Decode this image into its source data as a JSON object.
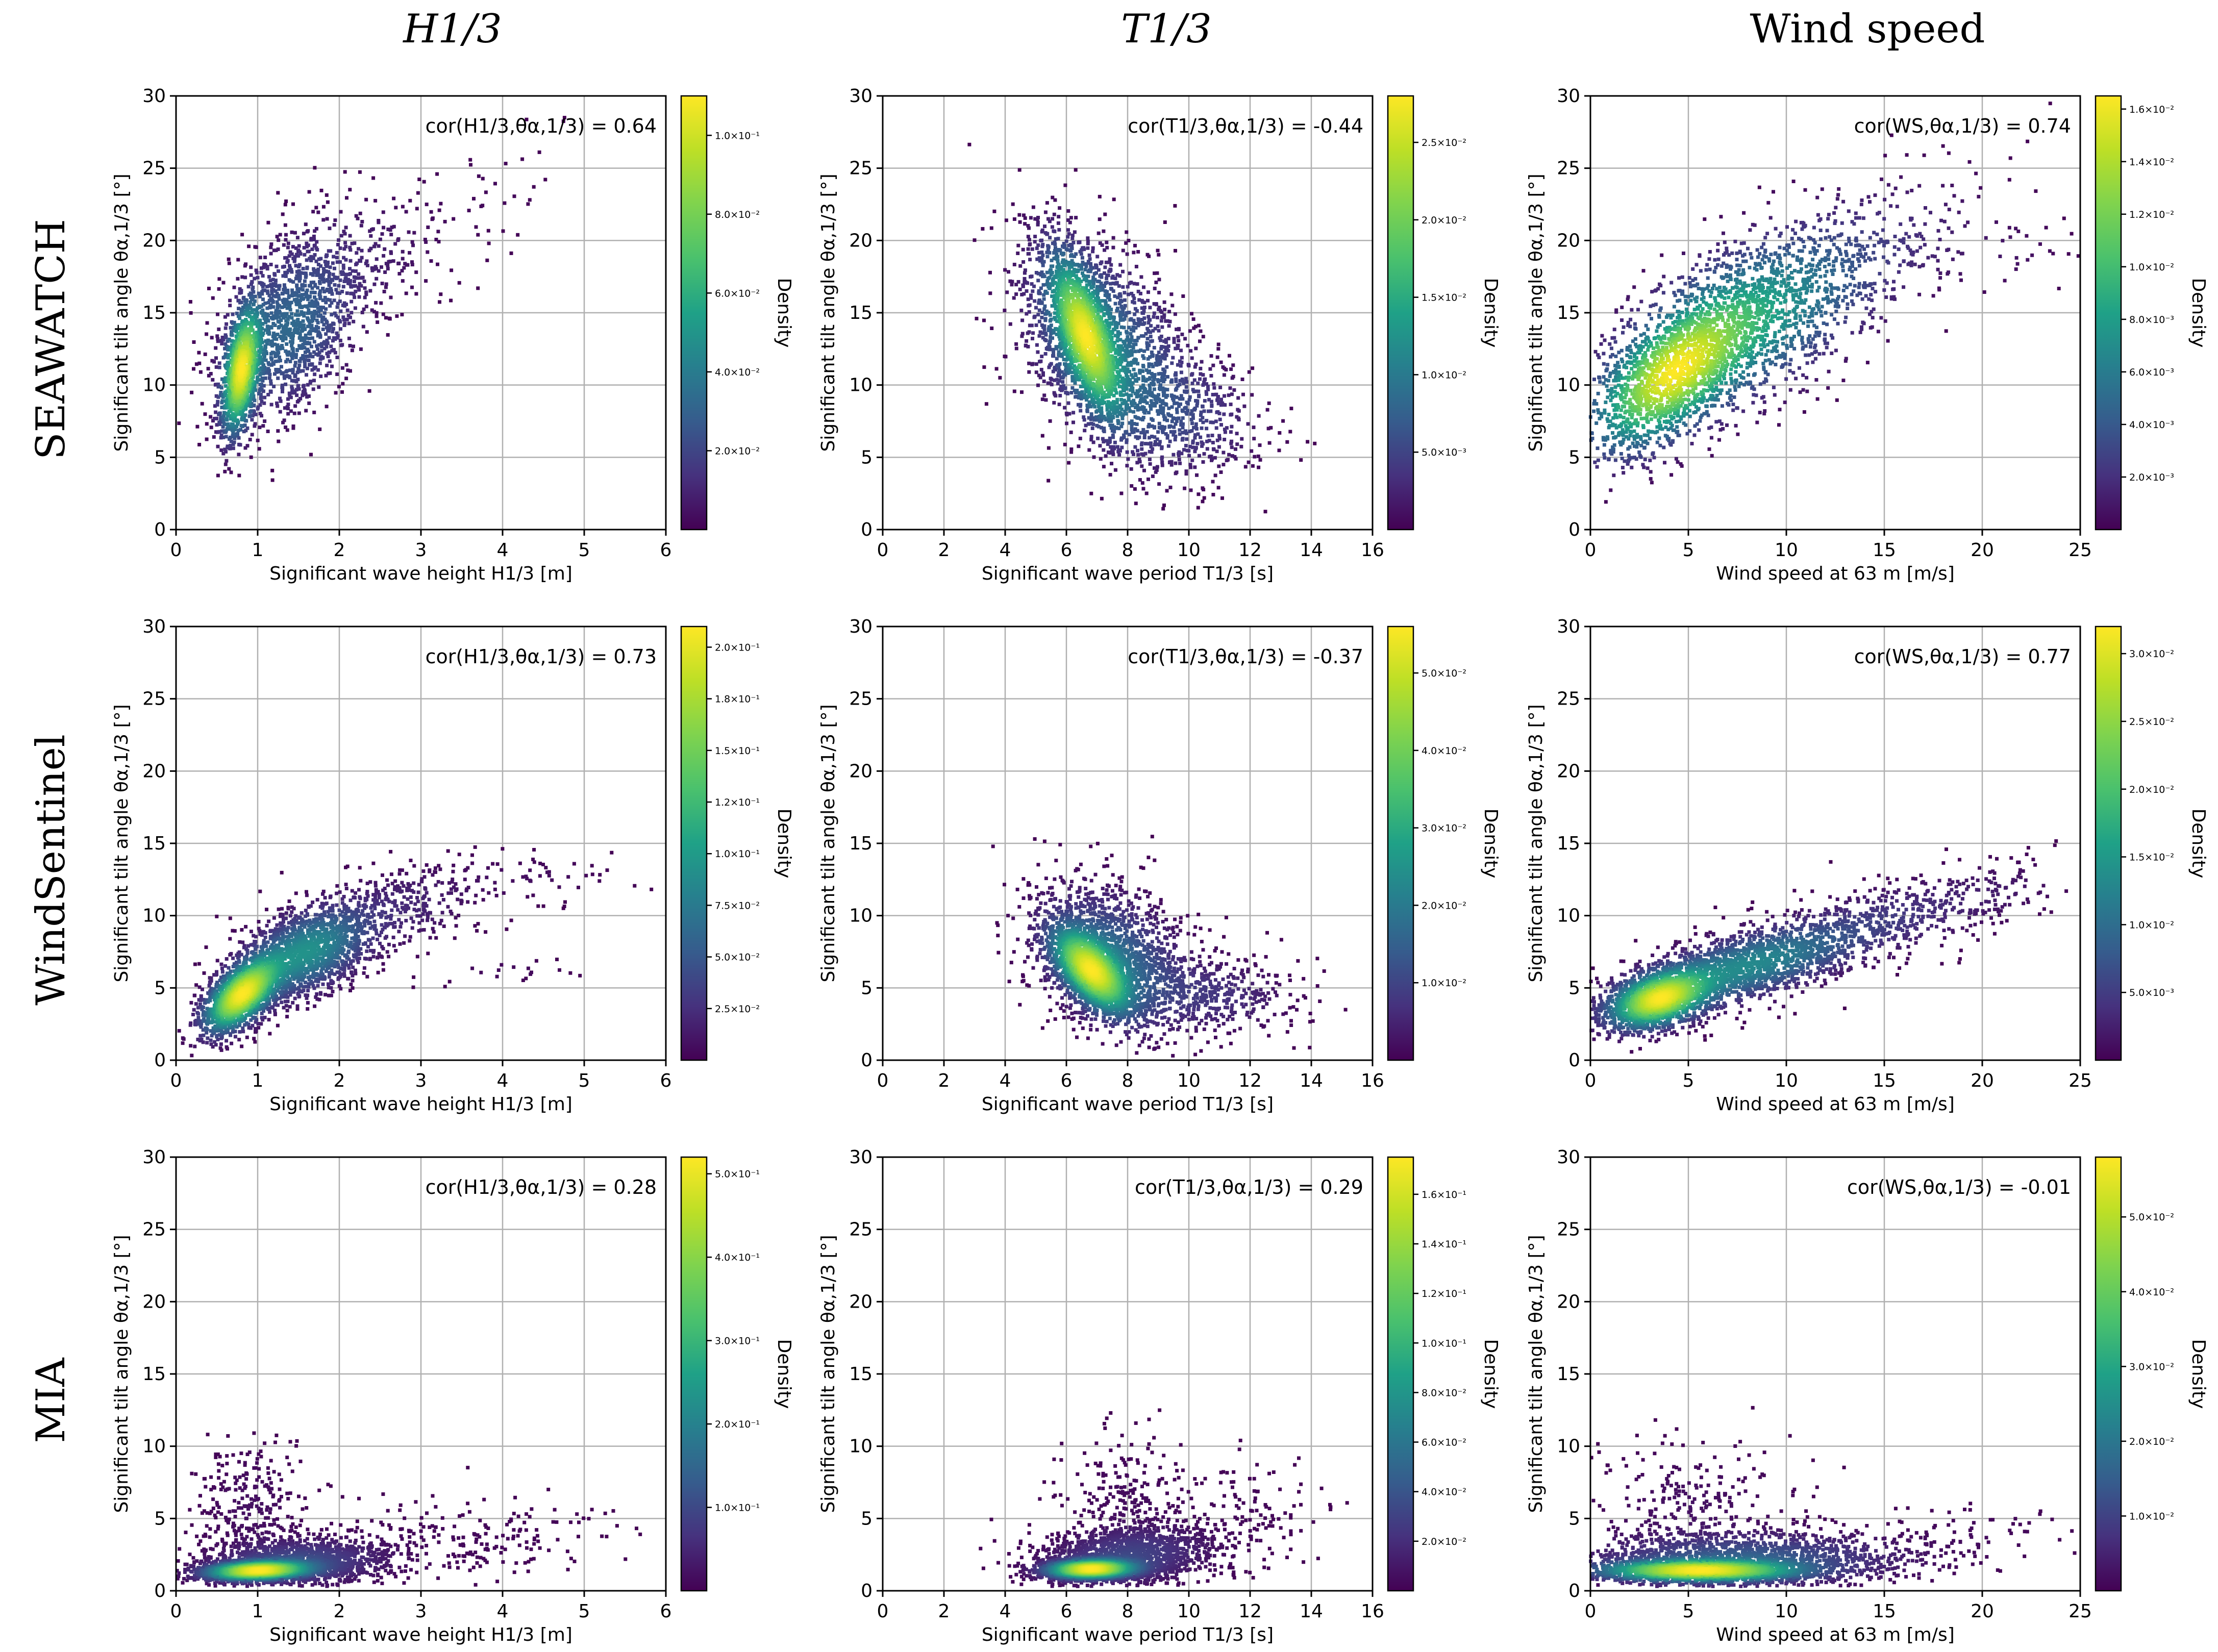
{
  "column_titles": [
    "H1/3",
    "T1/3",
    "Wind speed"
  ],
  "row_titles": [
    "SEAWATCH",
    "WindSentinel",
    "MIA"
  ],
  "colors": {
    "viridis_low": "#440154",
    "viridis_mid": "#21918c",
    "viridis_high": "#fde725",
    "grid": "#b0b0b0"
  },
  "chart_data": [
    {
      "type": "scatter",
      "row": "SEAWATCH",
      "column": "H1/3",
      "xlabel": "Significant wave height H1/3 [m]",
      "ylabel": "Significant tilt angle θα,1/3 [°]",
      "xlim": [
        0,
        6
      ],
      "ylim": [
        0,
        30
      ],
      "xticks": [
        0,
        1,
        2,
        3,
        4,
        5,
        6
      ],
      "yticks": [
        0,
        5,
        10,
        15,
        20,
        25,
        30
      ],
      "annotation": "cor(H1/3,θα,1/3) = 0.64",
      "correlation": 0.64,
      "colorbar_label": "Density",
      "colorbar_ticks": [
        "1.0×10⁻¹",
        "8.0×10⁻²",
        "6.0×10⁻²",
        "4.0×10⁻²",
        "2.0×10⁻²"
      ],
      "colorbar_range": [
        0.0,
        0.11
      ],
      "colorbar_tick_values": [
        0.1,
        0.08,
        0.06,
        0.04,
        0.02
      ],
      "clusters": [
        {
          "x": 0.8,
          "y": 11.0,
          "sx": 0.13,
          "sy": 2.4,
          "rho": 0.45,
          "n": 1100
        },
        {
          "x": 1.4,
          "y": 14.0,
          "sx": 0.45,
          "sy": 3.3,
          "rho": 0.35,
          "n": 1300
        },
        {
          "x": 2.4,
          "y": 19.0,
          "sx": 0.55,
          "sy": 2.6,
          "rho": 0.25,
          "n": 200
        },
        {
          "x": 3.9,
          "y": 23.5,
          "sx": 0.45,
          "sy": 2.2,
          "rho": 0.3,
          "n": 30
        }
      ]
    },
    {
      "type": "scatter",
      "row": "SEAWATCH",
      "column": "T1/3",
      "xlabel": "Significant wave period T1/3 [s]",
      "ylabel": "Significant tilt angle θα,1/3 [°]",
      "xlim": [
        0,
        16
      ],
      "ylim": [
        0,
        30
      ],
      "xticks": [
        0,
        2,
        4,
        6,
        8,
        10,
        12,
        14,
        16
      ],
      "yticks": [
        0,
        5,
        10,
        15,
        20,
        25,
        30
      ],
      "annotation": "cor(T1/3,θα,1/3) = -0.44",
      "correlation": -0.44,
      "colorbar_label": "Density",
      "colorbar_ticks": [
        "2.5×10⁻²",
        "2.0×10⁻²",
        "1.5×10⁻²",
        "1.0×10⁻²",
        "5.0×10⁻³"
      ],
      "colorbar_range": [
        0.0,
        0.028
      ],
      "colorbar_tick_values": [
        0.025,
        0.02,
        0.015,
        0.01,
        0.005
      ],
      "clusters": [
        {
          "x": 6.6,
          "y": 13.5,
          "sx": 0.65,
          "sy": 3.0,
          "rho": -0.65,
          "n": 1500
        },
        {
          "x": 7.3,
          "y": 12.5,
          "sx": 1.5,
          "sy": 4.0,
          "rho": -0.45,
          "n": 1700
        },
        {
          "x": 10.0,
          "y": 8.0,
          "sx": 1.4,
          "sy": 2.2,
          "rho": -0.2,
          "n": 350
        }
      ]
    },
    {
      "type": "scatter",
      "row": "SEAWATCH",
      "column": "Wind speed",
      "xlabel": "Wind speed at 63 m [m/s]",
      "ylabel": "Significant tilt angle θα,1/3 [°]",
      "xlim": [
        0,
        25
      ],
      "ylim": [
        0,
        30
      ],
      "xticks": [
        0,
        5,
        10,
        15,
        20,
        25
      ],
      "yticks": [
        0,
        5,
        10,
        15,
        20,
        25,
        30
      ],
      "annotation": "cor(WS,θα,1/3) = 0.74",
      "correlation": 0.74,
      "colorbar_label": "Density",
      "colorbar_ticks": [
        "1.6×10⁻²",
        "1.4×10⁻²",
        "1.2×10⁻²",
        "1.0×10⁻²",
        "8.0×10⁻³",
        "6.0×10⁻³",
        "4.0×10⁻³",
        "2.0×10⁻³"
      ],
      "colorbar_range": [
        0.0,
        0.0165
      ],
      "colorbar_tick_values": [
        0.016,
        0.014,
        0.012,
        0.01,
        0.008,
        0.006,
        0.004,
        0.002
      ],
      "clusters": [
        {
          "x": 4.0,
          "y": 10.5,
          "sx": 2.2,
          "sy": 2.8,
          "rho": 0.6,
          "n": 1400
        },
        {
          "x": 8.0,
          "y": 14.5,
          "sx": 3.5,
          "sy": 3.5,
          "rho": 0.55,
          "n": 1500
        },
        {
          "x": 15.5,
          "y": 20.0,
          "sx": 3.0,
          "sy": 3.0,
          "rho": 0.4,
          "n": 150
        },
        {
          "x": 21.0,
          "y": 19.0,
          "sx": 2.0,
          "sy": 1.5,
          "rho": 0.0,
          "n": 25
        }
      ]
    },
    {
      "type": "scatter",
      "row": "WindSentinel",
      "column": "H1/3",
      "xlabel": "Significant wave height H1/3 [m]",
      "ylabel": "Significant tilt angle θα,1/3 [°]",
      "xlim": [
        0,
        6
      ],
      "ylim": [
        0,
        30
      ],
      "xticks": [
        0,
        1,
        2,
        3,
        4,
        5,
        6
      ],
      "yticks": [
        0,
        5,
        10,
        15,
        20,
        25,
        30
      ],
      "annotation": "cor(H1/3,θα,1/3) = 0.73",
      "correlation": 0.73,
      "colorbar_label": "Density",
      "colorbar_ticks": [
        "2.0×10⁻¹",
        "1.8×10⁻¹",
        "1.5×10⁻¹",
        "1.2×10⁻¹",
        "1.0×10⁻¹",
        "7.5×10⁻²",
        "5.0×10⁻²",
        "2.5×10⁻²"
      ],
      "colorbar_range": [
        0.0,
        0.21
      ],
      "colorbar_tick_values": [
        0.2,
        0.175,
        0.15,
        0.125,
        0.1,
        0.075,
        0.05,
        0.025
      ],
      "clusters": [
        {
          "x": 0.8,
          "y": 4.5,
          "sx": 0.25,
          "sy": 1.4,
          "rho": 0.6,
          "n": 1700
        },
        {
          "x": 1.6,
          "y": 7.5,
          "sx": 0.45,
          "sy": 1.8,
          "rho": 0.5,
          "n": 1600
        },
        {
          "x": 2.8,
          "y": 10.5,
          "sx": 0.5,
          "sy": 1.6,
          "rho": 0.3,
          "n": 250
        },
        {
          "x": 4.3,
          "y": 12.5,
          "sx": 0.7,
          "sy": 0.9,
          "rho": 0.1,
          "n": 60
        },
        {
          "x": 4.0,
          "y": 6.2,
          "sx": 0.5,
          "sy": 0.5,
          "rho": 0.0,
          "n": 20
        }
      ]
    },
    {
      "type": "scatter",
      "row": "WindSentinel",
      "column": "T1/3",
      "xlabel": "Significant wave period T1/3 [s]",
      "ylabel": "Significant tilt angle θα,1/3 [°]",
      "xlim": [
        0,
        16
      ],
      "ylim": [
        0,
        30
      ],
      "xticks": [
        0,
        2,
        4,
        6,
        8,
        10,
        12,
        14,
        16
      ],
      "yticks": [
        0,
        5,
        10,
        15,
        20,
        25,
        30
      ],
      "annotation": "cor(T1/3,θα,1/3) = -0.37",
      "correlation": -0.37,
      "colorbar_label": "Density",
      "colorbar_ticks": [
        "5.0×10⁻²",
        "4.0×10⁻²",
        "3.0×10⁻²",
        "2.0×10⁻²",
        "1.0×10⁻²"
      ],
      "colorbar_range": [
        0.0,
        0.056
      ],
      "colorbar_tick_values": [
        0.05,
        0.04,
        0.03,
        0.02,
        0.01
      ],
      "clusters": [
        {
          "x": 6.8,
          "y": 6.2,
          "sx": 0.7,
          "sy": 1.6,
          "rho": -0.6,
          "n": 1700
        },
        {
          "x": 7.5,
          "y": 7.0,
          "sx": 1.3,
          "sy": 2.6,
          "rho": -0.35,
          "n": 1700
        },
        {
          "x": 10.8,
          "y": 4.5,
          "sx": 1.4,
          "sy": 1.4,
          "rho": -0.1,
          "n": 350
        }
      ]
    },
    {
      "type": "scatter",
      "row": "WindSentinel",
      "column": "Wind speed",
      "xlabel": "Wind speed at 63 m [m/s]",
      "ylabel": "Significant tilt angle θα,1/3 [°]",
      "xlim": [
        0,
        25
      ],
      "ylim": [
        0,
        30
      ],
      "xticks": [
        0,
        5,
        10,
        15,
        20,
        25
      ],
      "yticks": [
        0,
        5,
        10,
        15,
        20,
        25,
        30
      ],
      "annotation": "cor(WS,θα,1/3) = 0.77",
      "correlation": 0.77,
      "colorbar_label": "Density",
      "colorbar_ticks": [
        "3.0×10⁻²",
        "2.5×10⁻²",
        "2.0×10⁻²",
        "1.5×10⁻²",
        "1.0×10⁻²",
        "5.0×10⁻³"
      ],
      "colorbar_range": [
        0.0,
        0.032
      ],
      "colorbar_tick_values": [
        0.03,
        0.025,
        0.02,
        0.015,
        0.01,
        0.005
      ],
      "clusters": [
        {
          "x": 3.5,
          "y": 4.2,
          "sx": 1.4,
          "sy": 1.1,
          "rho": 0.4,
          "n": 1500
        },
        {
          "x": 8.0,
          "y": 6.5,
          "sx": 3.5,
          "sy": 1.8,
          "rho": 0.7,
          "n": 1800
        },
        {
          "x": 16.0,
          "y": 10.0,
          "sx": 3.0,
          "sy": 1.6,
          "rho": 0.5,
          "n": 350
        },
        {
          "x": 21.5,
          "y": 12.0,
          "sx": 1.8,
          "sy": 1.2,
          "rho": 0.2,
          "n": 50
        }
      ]
    },
    {
      "type": "scatter",
      "row": "MIA",
      "column": "H1/3",
      "xlabel": "Significant wave height H1/3 [m]",
      "ylabel": "Significant tilt angle θα,1/3 [°]",
      "xlim": [
        0,
        6
      ],
      "ylim": [
        0,
        30
      ],
      "xticks": [
        0,
        1,
        2,
        3,
        4,
        5,
        6
      ],
      "yticks": [
        0,
        5,
        10,
        15,
        20,
        25,
        30
      ],
      "annotation": "cor(H1/3,θα,1/3) = 0.28",
      "correlation": 0.28,
      "colorbar_label": "Density",
      "colorbar_ticks": [
        "5.0×10⁻¹",
        "4.0×10⁻¹",
        "3.0×10⁻¹",
        "2.0×10⁻¹",
        "1.0×10⁻¹"
      ],
      "colorbar_range": [
        0.0,
        0.52
      ],
      "colorbar_tick_values": [
        0.5,
        0.4,
        0.3,
        0.2,
        0.1
      ],
      "clusters": [
        {
          "x": 1.0,
          "y": 1.4,
          "sx": 0.35,
          "sy": 0.35,
          "rho": 0.2,
          "n": 2000
        },
        {
          "x": 1.5,
          "y": 2.0,
          "sx": 0.6,
          "sy": 0.9,
          "rho": 0.1,
          "n": 1300
        },
        {
          "x": 0.9,
          "y": 6.0,
          "sx": 0.35,
          "sy": 2.2,
          "rho": 0.0,
          "n": 250
        },
        {
          "x": 3.5,
          "y": 3.5,
          "sx": 0.9,
          "sy": 1.6,
          "rho": 0.1,
          "n": 200
        }
      ]
    },
    {
      "type": "scatter",
      "row": "MIA",
      "column": "T1/3",
      "xlabel": "Significant wave period T1/3 [s]",
      "ylabel": "Significant tilt angle θα,1/3 [°]",
      "xlim": [
        0,
        16
      ],
      "ylim": [
        0,
        30
      ],
      "xticks": [
        0,
        2,
        4,
        6,
        8,
        10,
        12,
        14,
        16
      ],
      "yticks": [
        0,
        5,
        10,
        15,
        20,
        25,
        30
      ],
      "annotation": "cor(T1/3,θα,1/3) = 0.29",
      "correlation": 0.29,
      "colorbar_label": "Density",
      "colorbar_ticks": [
        "1.6×10⁻¹",
        "1.4×10⁻¹",
        "1.2×10⁻¹",
        "1.0×10⁻¹",
        "8.0×10⁻²",
        "6.0×10⁻²",
        "4.0×10⁻²",
        "2.0×10⁻²"
      ],
      "colorbar_range": [
        0.0,
        0.175
      ],
      "colorbar_tick_values": [
        0.16,
        0.14,
        0.12,
        0.1,
        0.08,
        0.06,
        0.04,
        0.02
      ],
      "clusters": [
        {
          "x": 6.8,
          "y": 1.5,
          "sx": 0.8,
          "sy": 0.35,
          "rho": 0.1,
          "n": 2000
        },
        {
          "x": 8.0,
          "y": 2.4,
          "sx": 1.5,
          "sy": 1.1,
          "rho": 0.2,
          "n": 1400
        },
        {
          "x": 8.0,
          "y": 6.0,
          "sx": 1.2,
          "sy": 2.2,
          "rho": 0.0,
          "n": 250
        },
        {
          "x": 12.0,
          "y": 5.0,
          "sx": 1.3,
          "sy": 2.0,
          "rho": 0.0,
          "n": 120
        }
      ]
    },
    {
      "type": "scatter",
      "row": "MIA",
      "column": "Wind speed",
      "xlabel": "Wind speed at 63 m [m/s]",
      "ylabel": "Significant tilt angle θα,1/3 [°]",
      "xlim": [
        0,
        25
      ],
      "ylim": [
        0,
        30
      ],
      "xticks": [
        0,
        5,
        10,
        15,
        20,
        25
      ],
      "yticks": [
        0,
        5,
        10,
        15,
        20,
        25,
        30
      ],
      "annotation": "cor(WS,θα,1/3) = -0.01",
      "correlation": -0.01,
      "colorbar_label": "Density",
      "colorbar_ticks": [
        "5.0×10⁻²",
        "4.0×10⁻²",
        "3.0×10⁻²",
        "2.0×10⁻²",
        "1.0×10⁻²"
      ],
      "colorbar_range": [
        0.0,
        0.058
      ],
      "colorbar_tick_values": [
        0.05,
        0.04,
        0.03,
        0.02,
        0.01
      ],
      "clusters": [
        {
          "x": 5.5,
          "y": 1.4,
          "sx": 2.8,
          "sy": 0.4,
          "rho": 0.0,
          "n": 1900
        },
        {
          "x": 8.0,
          "y": 2.2,
          "sx": 4.5,
          "sy": 1.0,
          "rho": 0.0,
          "n": 1500
        },
        {
          "x": 5.0,
          "y": 6.0,
          "sx": 3.0,
          "sy": 2.2,
          "rho": 0.0,
          "n": 250
        },
        {
          "x": 20.0,
          "y": 4.0,
          "sx": 3.0,
          "sy": 1.2,
          "rho": 0.0,
          "n": 60
        }
      ]
    }
  ]
}
